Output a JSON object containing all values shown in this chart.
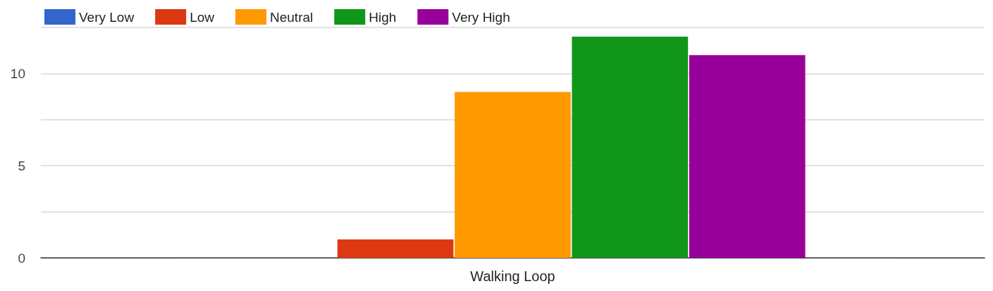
{
  "chart_data": {
    "type": "bar",
    "categories": [
      "Walking Loop"
    ],
    "series": [
      {
        "name": "Very Low",
        "color": "#3366cc",
        "values": [
          0
        ]
      },
      {
        "name": "Low",
        "color": "#dc3912",
        "values": [
          1
        ]
      },
      {
        "name": "Neutral",
        "color": "#ff9900",
        "values": [
          9
        ]
      },
      {
        "name": "High",
        "color": "#109618",
        "values": [
          12
        ]
      },
      {
        "name": "Very High",
        "color": "#990099",
        "values": [
          11
        ]
      }
    ],
    "ylim": [
      0,
      12.5
    ],
    "yticks": [
      0,
      {
        "value": 2.5,
        "label": null
      },
      5,
      {
        "value": 7.5,
        "label": null
      },
      10,
      {
        "value": 12.5,
        "label": null
      }
    ],
    "grid": "y",
    "legend": "top left"
  }
}
